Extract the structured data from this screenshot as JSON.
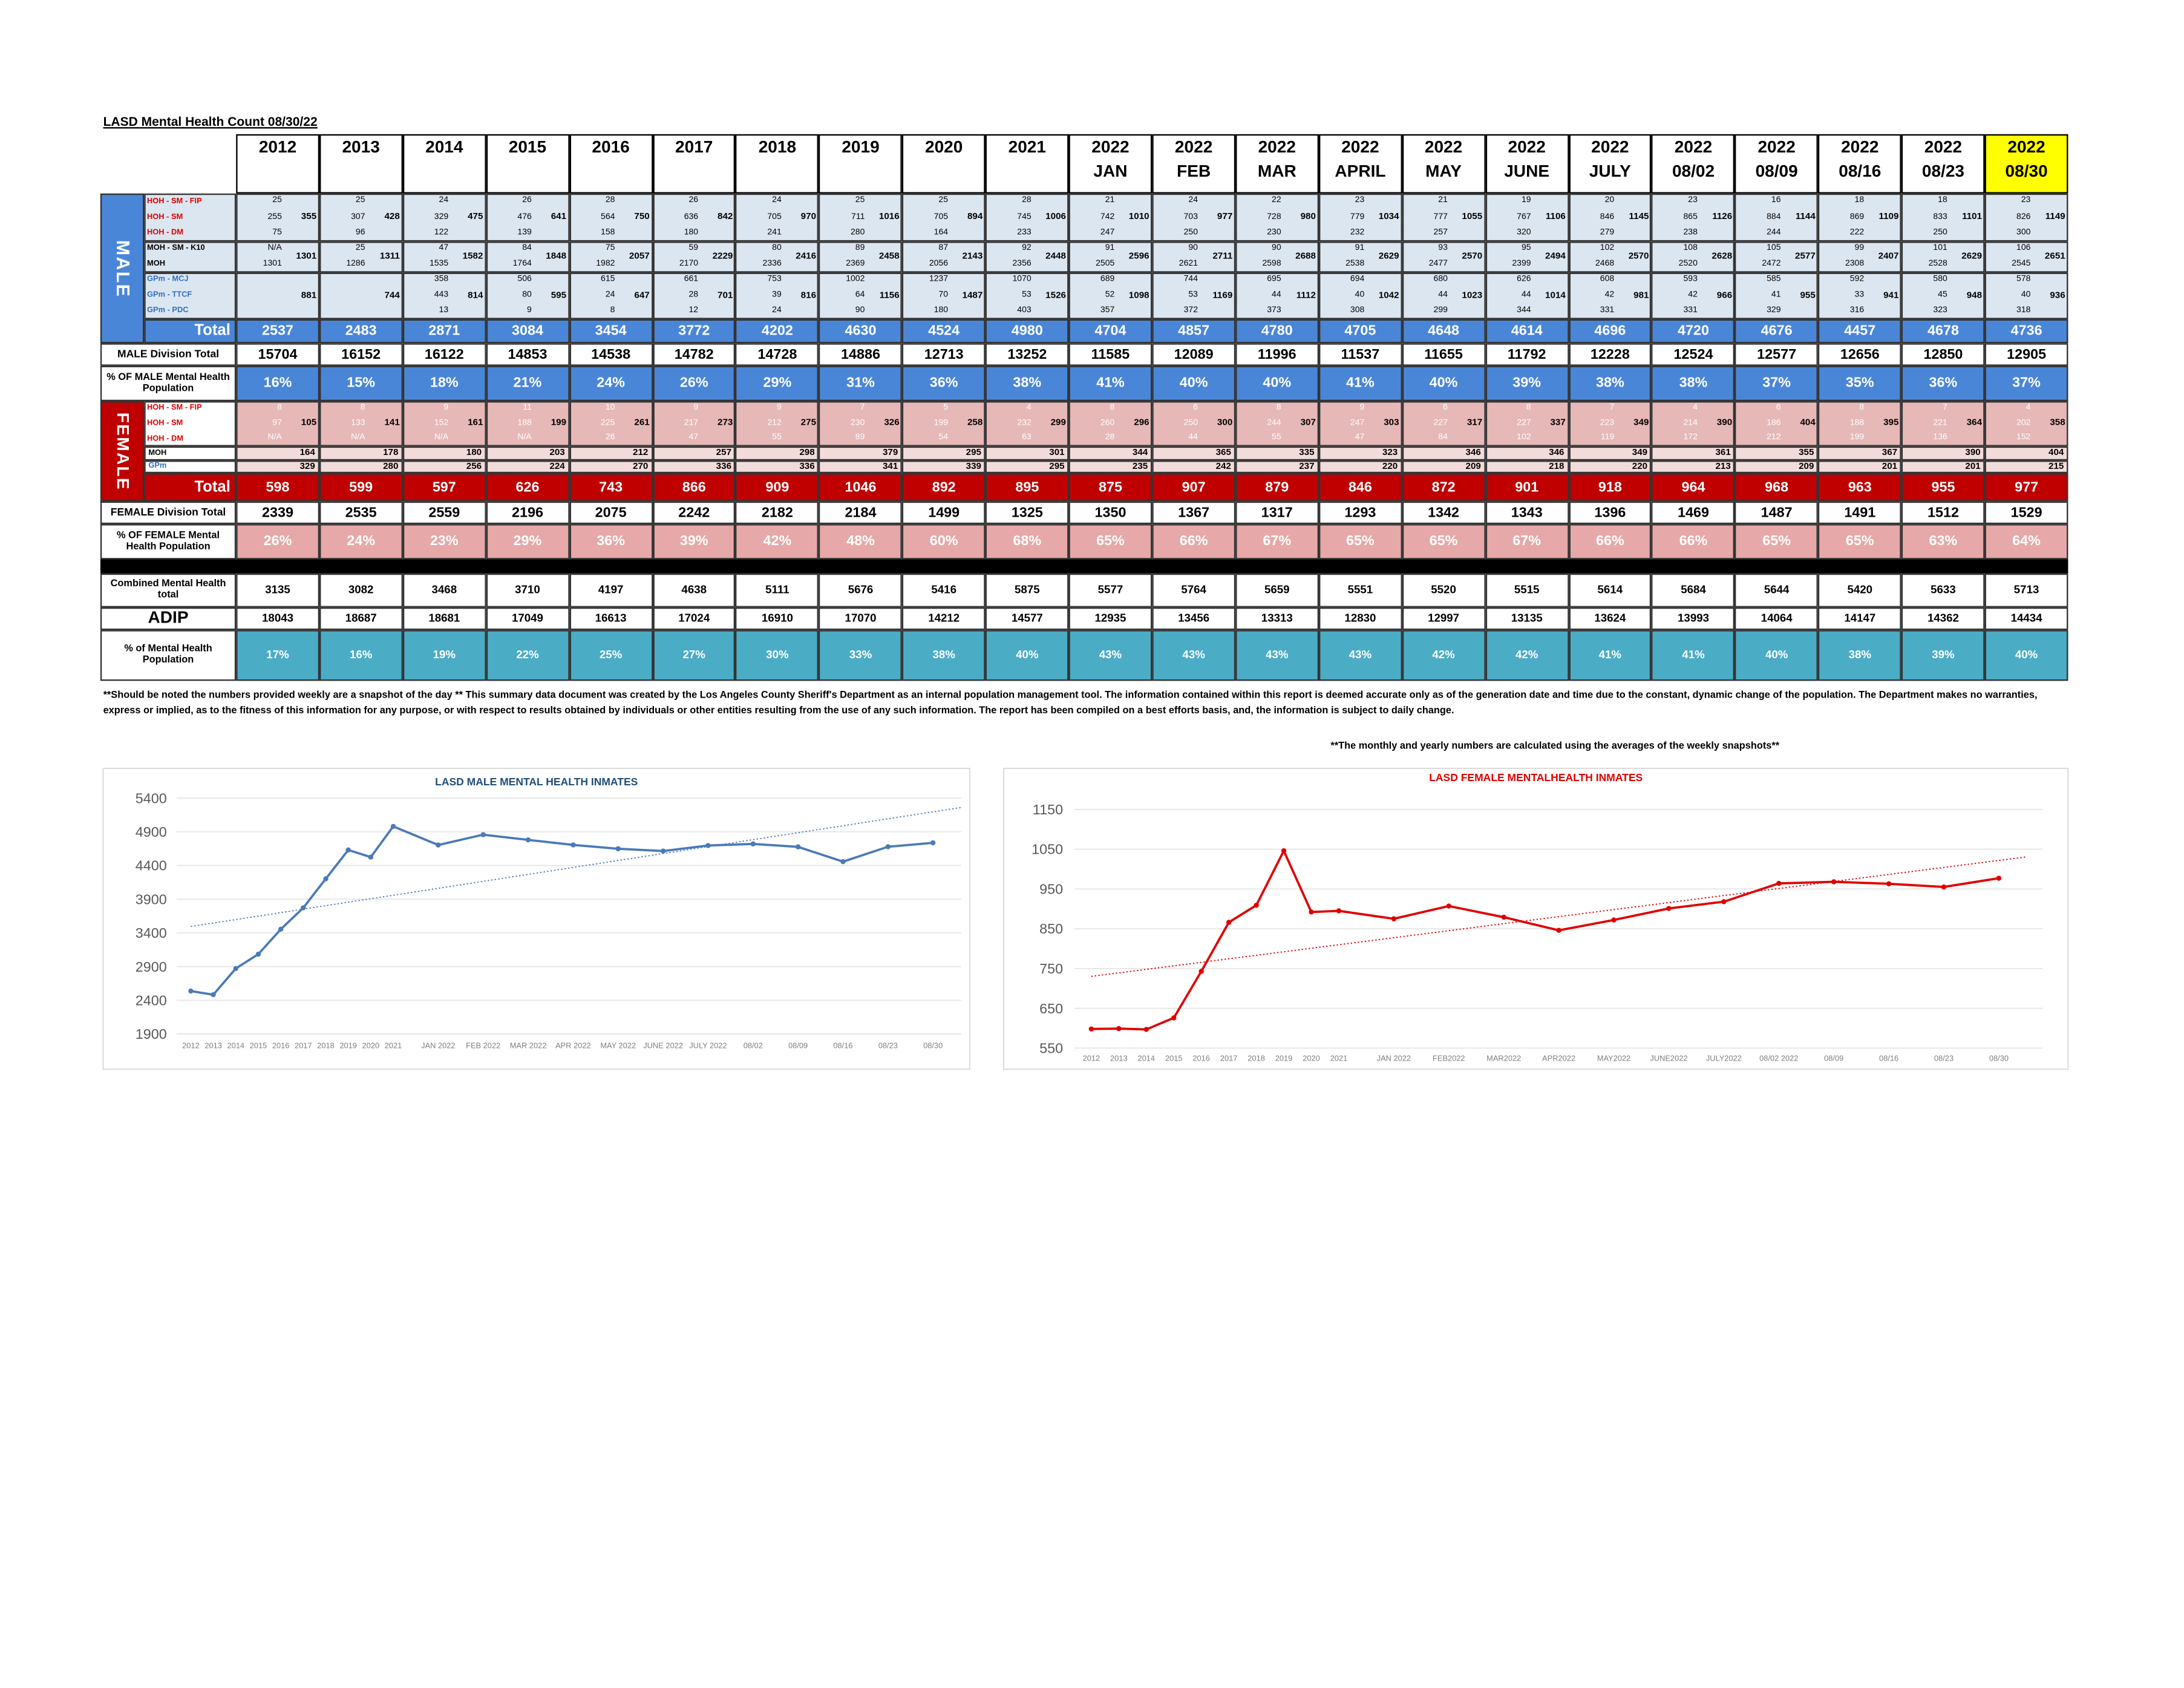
{
  "title": "LASD Mental Health Count 08/30/22",
  "columns": [
    {
      "year": "2012"
    },
    {
      "year": "2013"
    },
    {
      "year": "2014"
    },
    {
      "year": "2015"
    },
    {
      "year": "2016"
    },
    {
      "year": "2017"
    },
    {
      "year": "2018"
    },
    {
      "year": "2019"
    },
    {
      "year": "2020"
    },
    {
      "year": "2021"
    },
    {
      "year": "2022",
      "sub": "JAN"
    },
    {
      "year": "2022",
      "sub": "FEB"
    },
    {
      "year": "2022",
      "sub": "MAR"
    },
    {
      "year": "2022",
      "sub": "APRIL"
    },
    {
      "year": "2022",
      "sub": "MAY"
    },
    {
      "year": "2022",
      "sub": "JUNE"
    },
    {
      "year": "2022",
      "sub": "JULY"
    },
    {
      "year": "2022",
      "sub": "08/02"
    },
    {
      "year": "2022",
      "sub": "08/09"
    },
    {
      "year": "2022",
      "sub": "08/16"
    },
    {
      "year": "2022",
      "sub": "08/23"
    },
    {
      "year": "2022",
      "sub": "08/30",
      "highlight": "#ffff00"
    }
  ],
  "male": {
    "label": "MALE",
    "color": "#4a86d8",
    "groups": [
      {
        "labels": [
          "HOH - SM - FIP",
          "HOH - SM",
          "HOH - DM"
        ],
        "color": "#e00000",
        "cells": [
          [
            25,
            255,
            75,
            355
          ],
          [
            25,
            307,
            96,
            428
          ],
          [
            24,
            329,
            122,
            475
          ],
          [
            26,
            476,
            139,
            641
          ],
          [
            28,
            564,
            158,
            750
          ],
          [
            26,
            636,
            180,
            842
          ],
          [
            24,
            705,
            241,
            970
          ],
          [
            25,
            711,
            280,
            1016
          ],
          [
            25,
            705,
            164,
            894
          ],
          [
            28,
            745,
            233,
            1006
          ],
          [
            21,
            742,
            247,
            1010
          ],
          [
            24,
            703,
            250,
            977
          ],
          [
            22,
            728,
            230,
            980
          ],
          [
            23,
            779,
            232,
            1034
          ],
          [
            21,
            777,
            257,
            1055
          ],
          [
            19,
            767,
            320,
            1106
          ],
          [
            20,
            846,
            279,
            1145
          ],
          [
            23,
            865,
            238,
            1126
          ],
          [
            16,
            884,
            244,
            1144
          ],
          [
            18,
            869,
            222,
            1109
          ],
          [
            18,
            833,
            250,
            1101
          ],
          [
            23,
            826,
            300,
            1149
          ]
        ]
      },
      {
        "labels": [
          "MOH - SM - K10",
          "MOH"
        ],
        "color": "#000000",
        "cells": [
          [
            "N/A",
            1301,
            1301
          ],
          [
            25,
            1286,
            1311
          ],
          [
            47,
            1535,
            1582
          ],
          [
            84,
            1764,
            1848
          ],
          [
            75,
            1982,
            2057
          ],
          [
            59,
            2170,
            2229
          ],
          [
            80,
            2336,
            2416
          ],
          [
            89,
            2369,
            2458
          ],
          [
            87,
            2056,
            2143
          ],
          [
            92,
            2356,
            2448
          ],
          [
            91,
            2505,
            2596
          ],
          [
            90,
            2621,
            2711
          ],
          [
            90,
            2598,
            2688
          ],
          [
            91,
            2538,
            2629
          ],
          [
            93,
            2477,
            2570
          ],
          [
            95,
            2399,
            2494
          ],
          [
            102,
            2468,
            2570
          ],
          [
            108,
            2520,
            2628
          ],
          [
            105,
            2472,
            2577
          ],
          [
            99,
            2308,
            2407
          ],
          [
            101,
            2528,
            2629
          ],
          [
            106,
            2545,
            2651
          ]
        ]
      },
      {
        "labels": [
          "GPm - MCJ",
          "GPm - TTCF",
          "GPm - PDC"
        ],
        "color": "#2f6fc0",
        "cells": [
          [
            881
          ],
          [
            744
          ],
          [
            358,
            443,
            13,
            814
          ],
          [
            506,
            80,
            9,
            595
          ],
          [
            615,
            24,
            8,
            647
          ],
          [
            661,
            28,
            12,
            701
          ],
          [
            753,
            39,
            24,
            816
          ],
          [
            1002,
            64,
            90,
            1156
          ],
          [
            1237,
            70,
            180,
            1487
          ],
          [
            1070,
            53,
            403,
            1526
          ],
          [
            689,
            52,
            357,
            1098
          ],
          [
            744,
            53,
            372,
            1169
          ],
          [
            695,
            44,
            373,
            1112
          ],
          [
            694,
            40,
            308,
            1042
          ],
          [
            680,
            44,
            299,
            1023
          ],
          [
            626,
            44,
            344,
            1014
          ],
          [
            608,
            42,
            331,
            981
          ],
          [
            593,
            42,
            331,
            966
          ],
          [
            585,
            41,
            329,
            955
          ],
          [
            592,
            33,
            316,
            941
          ],
          [
            580,
            45,
            323,
            948
          ],
          [
            578,
            40,
            318,
            936
          ]
        ]
      }
    ],
    "total_label": "Total",
    "total": [
      2537,
      2483,
      2871,
      3084,
      3454,
      3772,
      4202,
      4630,
      4524,
      4980,
      4704,
      4857,
      4780,
      4705,
      4648,
      4614,
      4696,
      4720,
      4676,
      4457,
      4678,
      4736
    ],
    "division_label": "MALE Division Total",
    "division": [
      15704,
      16152,
      16122,
      14853,
      14538,
      14782,
      14728,
      14886,
      12713,
      13252,
      11585,
      12089,
      11996,
      11537,
      11655,
      11792,
      12228,
      12524,
      12577,
      12656,
      12850,
      12905
    ],
    "pct_label": "% OF MALE Mental Health Population",
    "pct": [
      "16%",
      "15%",
      "18%",
      "21%",
      "24%",
      "26%",
      "29%",
      "31%",
      "36%",
      "38%",
      "41%",
      "40%",
      "40%",
      "41%",
      "40%",
      "39%",
      "38%",
      "38%",
      "37%",
      "35%",
      "36%",
      "37%"
    ]
  },
  "female": {
    "label": "FEMALE",
    "color": "#c00000",
    "groups": [
      {
        "labels": [
          "HOH - SM - FIP",
          "HOH - SM",
          "HOH - DM"
        ],
        "color": "#e00000",
        "cells": [
          [
            8,
            97,
            "N/A",
            105
          ],
          [
            8,
            133,
            "N/A",
            141
          ],
          [
            9,
            152,
            "N/A",
            161
          ],
          [
            11,
            188,
            "N/A",
            199
          ],
          [
            10,
            225,
            26,
            261
          ],
          [
            9,
            217,
            47,
            273
          ],
          [
            9,
            212,
            55,
            275
          ],
          [
            7,
            230,
            89,
            326
          ],
          [
            5,
            199,
            54,
            258
          ],
          [
            4,
            232,
            63,
            299
          ],
          [
            8,
            260,
            28,
            296
          ],
          [
            6,
            250,
            44,
            300
          ],
          [
            8,
            244,
            55,
            307
          ],
          [
            9,
            247,
            47,
            303
          ],
          [
            6,
            227,
            84,
            317
          ],
          [
            8,
            227,
            102,
            337
          ],
          [
            7,
            223,
            119,
            349
          ],
          [
            4,
            214,
            172,
            390
          ],
          [
            6,
            186,
            212,
            404
          ],
          [
            8,
            188,
            199,
            395
          ],
          [
            7,
            221,
            136,
            364
          ],
          [
            4,
            202,
            152,
            358
          ]
        ]
      }
    ],
    "rows": [
      {
        "label": "MOH",
        "color": "#000000",
        "values": [
          164,
          178,
          180,
          203,
          212,
          257,
          298,
          379,
          295,
          301,
          344,
          365,
          335,
          323,
          346,
          346,
          349,
          361,
          355,
          367,
          390,
          404
        ]
      },
      {
        "label": "GPm",
        "color": "#2f6fc0",
        "values": [
          329,
          280,
          256,
          224,
          270,
          336,
          336,
          341,
          339,
          295,
          235,
          242,
          237,
          220,
          209,
          218,
          220,
          213,
          209,
          201,
          201,
          215
        ]
      }
    ],
    "total_label": "Total",
    "total": [
      598,
      599,
      597,
      626,
      743,
      866,
      909,
      1046,
      892,
      895,
      875,
      907,
      879,
      846,
      872,
      901,
      918,
      964,
      968,
      963,
      955,
      977
    ],
    "division_label": "FEMALE Division Total",
    "division": [
      2339,
      2535,
      2559,
      2196,
      2075,
      2242,
      2182,
      2184,
      1499,
      1325,
      1350,
      1367,
      1317,
      1293,
      1342,
      1343,
      1396,
      1469,
      1487,
      1491,
      1512,
      1529
    ],
    "pct_label": "% OF FEMALE Mental Health Population",
    "pct": [
      "26%",
      "24%",
      "23%",
      "29%",
      "36%",
      "39%",
      "42%",
      "48%",
      "60%",
      "68%",
      "65%",
      "66%",
      "67%",
      "65%",
      "65%",
      "67%",
      "66%",
      "66%",
      "65%",
      "65%",
      "63%",
      "64%"
    ]
  },
  "combined": {
    "label": "Combined Mental Health total",
    "values": [
      3135,
      3082,
      3468,
      3710,
      4197,
      4638,
      5111,
      5676,
      5416,
      5875,
      5577,
      5764,
      5659,
      5551,
      5520,
      5515,
      5614,
      5684,
      5644,
      5420,
      5633,
      5713
    ]
  },
  "adip": {
    "label": "ADIP",
    "values": [
      18043,
      18687,
      18681,
      17049,
      16613,
      17024,
      16910,
      17070,
      14212,
      14577,
      12935,
      13456,
      13313,
      12830,
      12997,
      13135,
      13624,
      13993,
      14064,
      14147,
      14362,
      14434
    ]
  },
  "pct_mh": {
    "label": "% of Mental Health Population",
    "values": [
      "17%",
      "16%",
      "19%",
      "22%",
      "25%",
      "27%",
      "30%",
      "33%",
      "38%",
      "40%",
      "43%",
      "43%",
      "43%",
      "43%",
      "42%",
      "42%",
      "41%",
      "41%",
      "40%",
      "38%",
      "39%",
      "40%"
    ]
  },
  "notes": [
    "**Should be noted the numbers provided weekly are a snapshot of the day ** This summary data document was created by the Los Angeles County Sheriff's Department as an internal population management tool.  The information contained within this report is deemed accurate only as of the generation date and time due to the constant, dynamic change of the population.  The Department makes no warranties, express or implied, as to the fitness of this information for any purpose, or with respect to results obtained by individuals or other entities resulting from the use of any such information.  The report has been compiled on a best efforts basis, and, the information is subject to daily change.",
    "**The monthly and yearly numbers are calculated using the averages of the weekly snapshots**"
  ],
  "chart_data": [
    {
      "type": "line",
      "title": "LASD MALE MENTAL HEALTH INMATES",
      "title_color": "#1f4e79",
      "color": "#4a7ab8",
      "trendline": true,
      "grid": true,
      "categories": [
        "2012",
        "2013",
        "2014",
        "2015",
        "2016",
        "2017",
        "2018",
        "2019",
        "2020",
        "2021",
        "JAN 2022",
        "FEB 2022",
        "MAR 2022",
        "APR 2022",
        "MAY 2022",
        "JUNE 2022",
        "JULY 2022",
        "08/02",
        "08/09",
        "08/16",
        "08/23",
        "08/30"
      ],
      "values": [
        2537,
        2483,
        2871,
        3084,
        3454,
        3772,
        4202,
        4630,
        4524,
        4980,
        4704,
        4857,
        4780,
        4705,
        4648,
        4614,
        4696,
        4720,
        4676,
        4457,
        4678,
        4736
      ],
      "ylim": [
        1900,
        5400
      ],
      "yticks": [
        1900,
        2400,
        2900,
        3400,
        3900,
        4400,
        4900,
        5400
      ]
    },
    {
      "type": "line",
      "title": "LASD FEMALE MENTALHEALTH INMATES",
      "title_color": "#e00000",
      "color": "#e00000",
      "trendline": true,
      "grid": true,
      "categories": [
        "2012",
        "2013",
        "2014",
        "2015",
        "2016",
        "2017",
        "2018",
        "2019",
        "2020",
        "2021",
        "JAN 2022",
        "FEB2022",
        "MAR2022",
        "APR2022",
        "MAY2022",
        "JUNE2022",
        "JULY2022",
        "08/02 2022",
        "08/09",
        "08/16",
        "08/23",
        "08/30"
      ],
      "values": [
        598,
        599,
        597,
        626,
        743,
        866,
        909,
        1046,
        892,
        895,
        875,
        907,
        879,
        846,
        872,
        901,
        918,
        964,
        968,
        963,
        955,
        977
      ],
      "ylim": [
        550,
        1150
      ],
      "yticks": [
        550,
        650,
        750,
        850,
        950,
        1050,
        1150
      ]
    }
  ]
}
